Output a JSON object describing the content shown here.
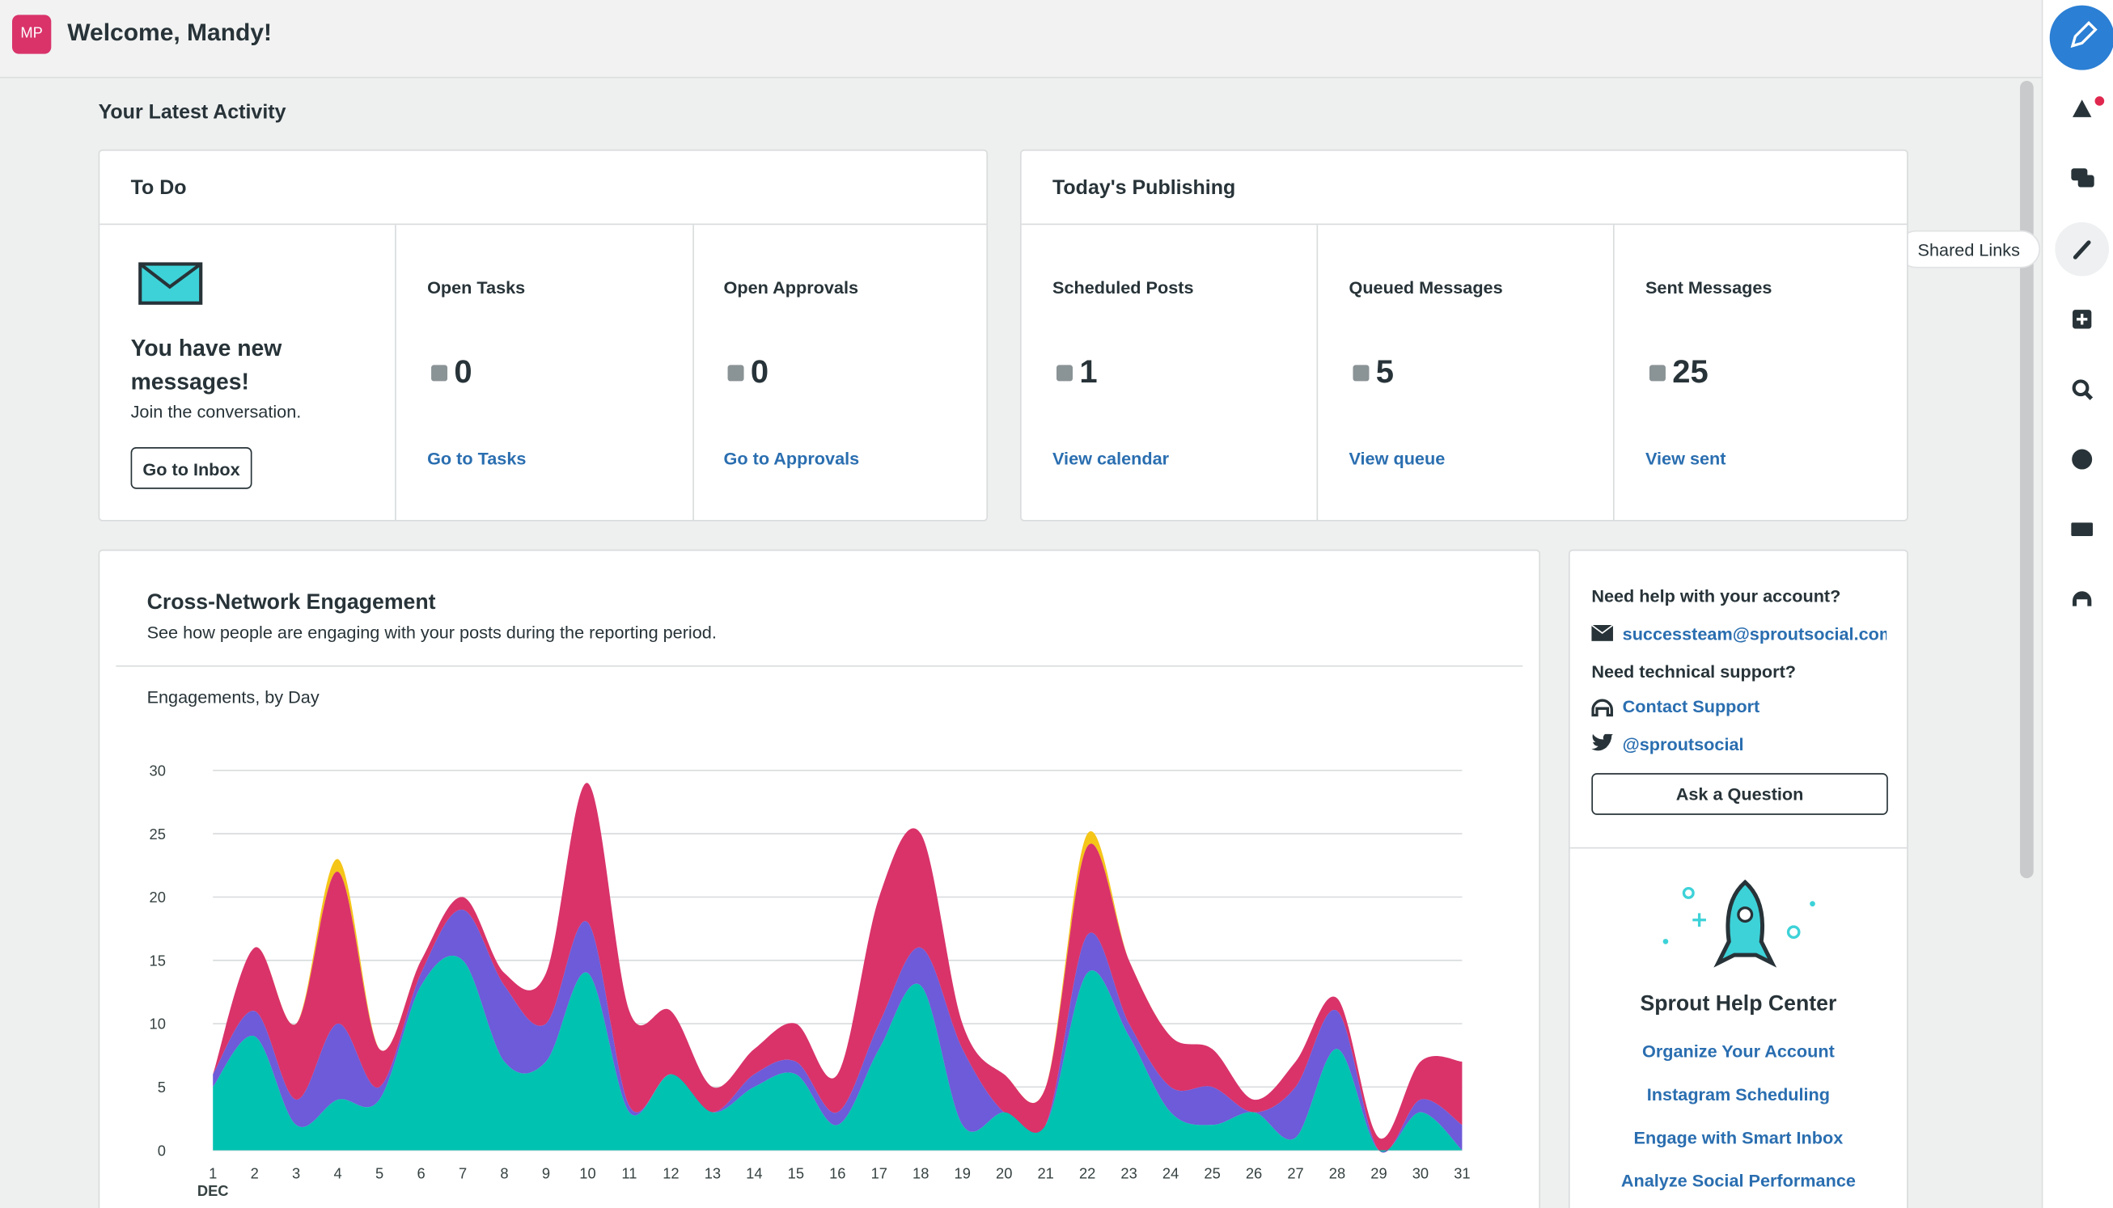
{
  "header": {
    "avatar": "MP",
    "welcome": "Welcome, Mandy!"
  },
  "sidebar": {
    "tooltip": "Shared Links"
  },
  "activity": {
    "title": "Your Latest Activity"
  },
  "todo": {
    "title": "To Do",
    "message_title": "You have new messages!",
    "message_sub": "Join the conversation.",
    "inbox_button": "Go to Inbox",
    "cards": [
      {
        "label": "Open Tasks",
        "value": 0,
        "link": "Go to Tasks"
      },
      {
        "label": "Open Approvals",
        "value": 0,
        "link": "Go to Approvals"
      }
    ]
  },
  "publishing": {
    "title": "Today's Publishing",
    "cards": [
      {
        "label": "Scheduled Posts",
        "value": 1,
        "link": "View calendar"
      },
      {
        "label": "Queued Messages",
        "value": 5,
        "link": "View queue"
      },
      {
        "label": "Sent Messages",
        "value": 25,
        "link": "View sent"
      }
    ]
  },
  "chart_data": {
    "type": "area",
    "stacked": true,
    "title": "Cross-Network Engagement",
    "subtitle": "See how people are engaging with your posts during the reporting period.",
    "y_label": "Engagements, by Day",
    "x_sublabel": "DEC",
    "grid": true,
    "x": [
      1,
      2,
      3,
      4,
      5,
      6,
      7,
      8,
      9,
      10,
      11,
      12,
      13,
      14,
      15,
      16,
      17,
      18,
      19,
      20,
      21,
      22,
      23,
      24,
      25,
      26,
      27,
      28,
      29,
      30,
      31
    ],
    "xlim": [
      1,
      31
    ],
    "xticks": [
      1,
      2,
      3,
      4,
      5,
      6,
      7,
      8,
      9,
      10,
      11,
      12,
      13,
      14,
      15,
      16,
      17,
      18,
      19,
      20,
      21,
      22,
      23,
      24,
      25,
      26,
      27,
      28,
      29,
      30,
      31
    ],
    "ylim": [
      0,
      30
    ],
    "yticks": [
      0,
      5,
      10,
      15,
      20,
      25,
      30
    ],
    "series": [
      {
        "color": "#00c2b0",
        "values": [
          5,
          9,
          2,
          4,
          4,
          13,
          15,
          7,
          7,
          14,
          3,
          6,
          3,
          5,
          6,
          2,
          8,
          13,
          2,
          3,
          2,
          14,
          9,
          3,
          2,
          3,
          1,
          8,
          0,
          3,
          0
        ]
      },
      {
        "color": "#6d5bd9",
        "values": [
          1,
          2,
          2,
          6,
          1,
          1,
          4,
          6,
          3,
          4,
          0.5,
          0,
          0,
          1,
          1,
          1,
          2,
          3,
          6,
          0,
          0,
          3,
          1,
          2,
          3,
          0,
          4,
          3,
          0,
          1,
          2
        ]
      },
      {
        "color": "#d9336a",
        "values": [
          0,
          5,
          6,
          12,
          3,
          1,
          1,
          1,
          4,
          11,
          7.5,
          5,
          2,
          2,
          3,
          3,
          10,
          9,
          2,
          3,
          3,
          7,
          5,
          4,
          3,
          1,
          2,
          1,
          1,
          3,
          5
        ]
      },
      {
        "color": "#f5c518",
        "values": [
          0,
          0,
          0,
          1,
          0,
          0,
          0,
          0,
          0,
          0,
          0,
          0,
          0,
          0,
          0,
          0,
          0,
          0,
          0,
          0,
          0,
          1,
          0,
          0,
          0,
          0,
          0,
          0,
          0,
          0,
          0
        ]
      }
    ]
  },
  "help": {
    "account_q": "Need help with your account?",
    "email": "successteam@sproutsocial.com",
    "tech_q": "Need technical support?",
    "contact": "Contact Support",
    "twitter": "@sproutsocial",
    "ask": "Ask a Question",
    "center_title": "Sprout Help Center",
    "links": [
      "Organize Your Account",
      "Instagram Scheduling",
      "Engage with Smart Inbox",
      "Analyze Social Performance"
    ]
  }
}
